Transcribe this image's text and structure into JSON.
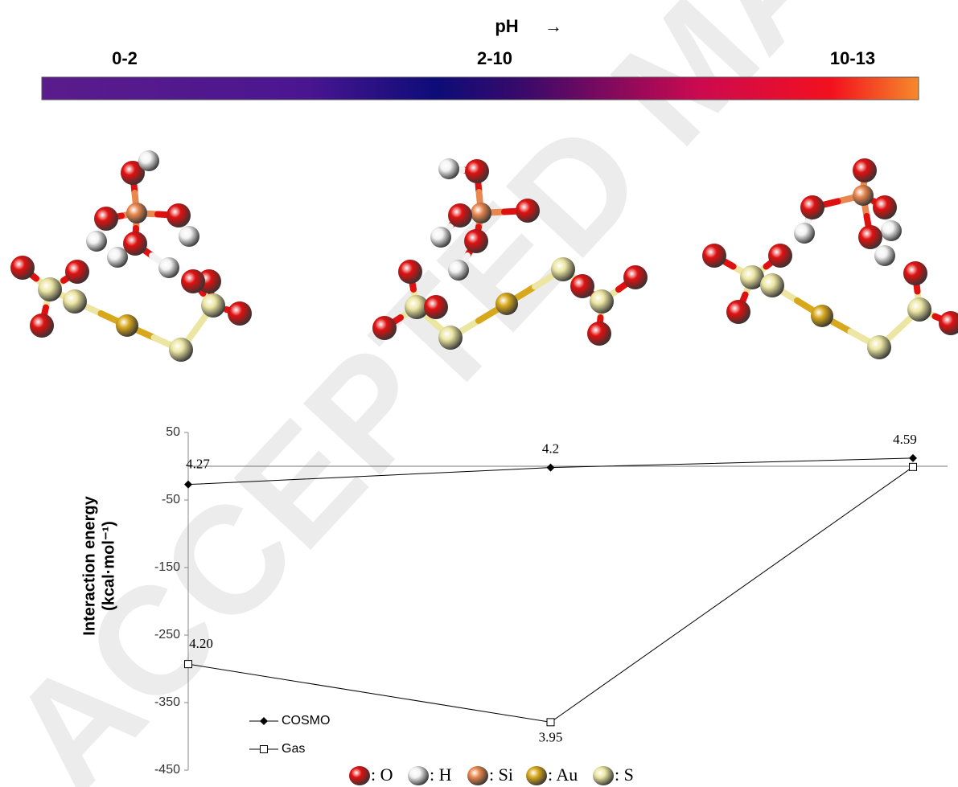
{
  "watermark": "ACCEPTED MANUSCRIPT",
  "ph_scale": {
    "title": "pH",
    "arrow": "→",
    "labels": [
      "0-2",
      "2-10",
      "10-13"
    ]
  },
  "chart_data": {
    "type": "line",
    "y_label": [
      "Interaction energy",
      "(kcal·mol⁻¹)"
    ],
    "categories": [
      null,
      null,
      null
    ],
    "ylim": [
      -450,
      50
    ],
    "yticks": [
      50,
      -50,
      -150,
      -250,
      -350,
      -450
    ],
    "zero_line": true,
    "legend": "lower left",
    "series": [
      {
        "name": "COSMO",
        "color": "#000000",
        "marker": "diamond",
        "values": [
          -27,
          -2,
          12
        ],
        "point_labels": [
          "4.27",
          "4.2",
          "4.59"
        ]
      },
      {
        "name": "Gas",
        "color": "#000000",
        "marker": "square",
        "values": [
          -293,
          -379,
          -1
        ],
        "point_labels": [
          "4.20",
          "3.95",
          null
        ]
      }
    ]
  },
  "atom_legend": [
    {
      "label": ": O",
      "color": "#e01010"
    },
    {
      "label": ": H",
      "color": "#f2f2f2"
    },
    {
      "label": ": Si",
      "color": "#e8874e"
    },
    {
      "label": ": Au",
      "color": "#d8a81c"
    },
    {
      "label": ": S",
      "color": "#ece6a2"
    }
  ]
}
